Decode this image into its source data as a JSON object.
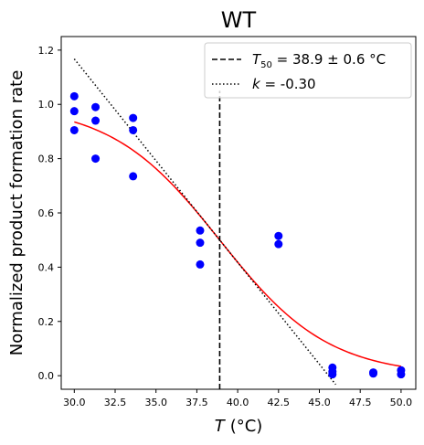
{
  "chart_data": {
    "type": "scatter",
    "title": "WT",
    "xlabel": {
      "symbol": "T",
      "unit": "(°C)"
    },
    "ylabel": "Normalized product formation rate",
    "xlim": [
      29.2,
      50.9
    ],
    "ylim": [
      -0.05,
      1.25
    ],
    "xticks": [
      30.0,
      32.5,
      35.0,
      37.5,
      40.0,
      42.5,
      45.0,
      47.5,
      50.0
    ],
    "xtick_labels": [
      "30.0",
      "32.5",
      "35.0",
      "37.5",
      "40.0",
      "42.5",
      "45.0",
      "47.5",
      "50.0"
    ],
    "yticks": [
      0.0,
      0.2,
      0.4,
      0.6,
      0.8,
      1.0,
      1.2
    ],
    "ytick_labels": [
      "0.0",
      "0.2",
      "0.4",
      "0.6",
      "0.8",
      "1.0",
      "1.2"
    ],
    "grid": false,
    "legend_position": "top-right",
    "series": [
      {
        "kind": "scatter",
        "color": "#0000ff",
        "points": [
          [
            30.0,
            1.03
          ],
          [
            30.0,
            0.975
          ],
          [
            30.0,
            0.905
          ],
          [
            31.3,
            0.99
          ],
          [
            31.3,
            0.94
          ],
          [
            31.3,
            0.8
          ],
          [
            33.6,
            0.95
          ],
          [
            33.6,
            0.905
          ],
          [
            33.6,
            0.735
          ],
          [
            37.7,
            0.535
          ],
          [
            37.7,
            0.49
          ],
          [
            37.7,
            0.41
          ],
          [
            42.5,
            0.515
          ],
          [
            42.5,
            0.485
          ],
          [
            45.8,
            0.03
          ],
          [
            45.8,
            0.015
          ],
          [
            45.8,
            0.005
          ],
          [
            48.3,
            0.012
          ],
          [
            48.3,
            0.008
          ],
          [
            50.0,
            0.02
          ],
          [
            50.0,
            0.005
          ]
        ]
      },
      {
        "kind": "logistic_fit",
        "color": "#ff0000",
        "midpoint": 38.9,
        "slope": -0.3,
        "x_range": [
          30.0,
          50.0
        ]
      },
      {
        "kind": "vline",
        "name": "T50",
        "legend_label": {
          "symbol": "T",
          "subscript": "50",
          "text": " = 38.9 ± 0.6 °C"
        },
        "style": "dashed",
        "color": "#000000",
        "x": 38.9,
        "y_range": [
          -0.05,
          1.05
        ]
      },
      {
        "kind": "tangent",
        "name": "k",
        "legend_label": {
          "symbol": "k",
          "text": " = -0.30"
        },
        "style": "dotted",
        "color": "#000000",
        "x0": 38.9,
        "y0": 0.5,
        "slope": -0.075,
        "x_range": [
          30.0,
          46.0
        ]
      }
    ]
  }
}
